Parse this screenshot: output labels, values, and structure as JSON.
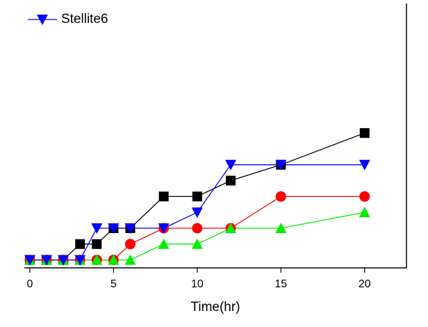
{
  "chart_data": {
    "type": "line",
    "xlabel": "Time(hr)",
    "x": [
      0,
      1,
      2,
      3,
      4,
      5,
      6,
      8,
      10,
      12,
      15,
      20
    ],
    "xlim": [
      -0.33,
      22.5
    ],
    "xticks": [
      0,
      5,
      10,
      15,
      20
    ],
    "ylim": [
      0,
      10
    ],
    "legend": "upper left",
    "series": [
      {
        "name": "Stellite6",
        "color": "#0000ff",
        "marker": "triangle-down",
        "values": [
          0.3,
          0.3,
          0.3,
          0.3,
          1.5,
          1.5,
          1.5,
          1.5,
          2.1,
          3.9,
          3.9,
          3.9
        ]
      },
      {
        "color": "#000000",
        "marker": "square",
        "values": [
          0.3,
          0.3,
          0.3,
          0.9,
          0.9,
          1.5,
          1.5,
          2.7,
          2.7,
          3.3,
          3.9,
          5.1
        ]
      },
      {
        "color": "#ff0000",
        "marker": "circle",
        "values": [
          0.3,
          0.3,
          0.3,
          0.3,
          0.3,
          0.3,
          0.9,
          1.5,
          1.5,
          1.5,
          2.7,
          2.7
        ]
      },
      {
        "color": "#00ee00",
        "marker": "triangle-up",
        "values": [
          0.3,
          0.3,
          0.3,
          0.3,
          0.3,
          0.3,
          0.3,
          0.9,
          0.9,
          1.5,
          1.5,
          2.1
        ]
      }
    ]
  }
}
